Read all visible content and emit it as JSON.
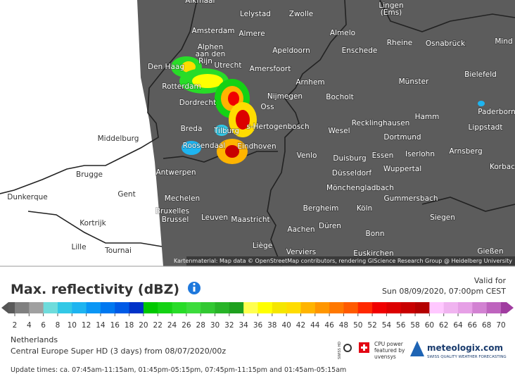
{
  "map": {
    "cities": [
      "Alkmaar",
      "Lelystad",
      "Zwolle",
      "Lingen",
      "(Ems)",
      "Amsterdam",
      "Almere",
      "Almelo",
      "Rheine",
      "Osnabrück",
      "Mind",
      "Alphen",
      "aan den",
      "Rijn",
      "Apeldoorn",
      "Enschede",
      "Den Haag",
      "Utrecht",
      "Amersfoort",
      "Bielefeld",
      "Arnhem",
      "Münster",
      "Rotterdam",
      "Nijmegen",
      "Bocholt",
      "Dordrecht",
      "Oss",
      "Paderborn",
      "Hamm",
      "s-Hertogenbosch",
      "Recklinghausen",
      "Lippstadt",
      "Breda",
      "Tilburg",
      "Wesel",
      "Dortmund",
      "Middelburg",
      "Roosendaal",
      "Eindhoven",
      "Arnsberg",
      "Venlo",
      "Duisburg",
      "Essen",
      "Iserlohn",
      "Antwerpen",
      "Düsseldorf",
      "Wuppertal",
      "Korbac",
      "Brugge",
      "Mönchengladbach",
      "Gent",
      "Dunkerque",
      "Gummersbach",
      "Mechelen",
      "Bergheim",
      "Köln",
      "Bruxelles",
      "Brussel",
      "Leuven",
      "Maastricht",
      "Siegen",
      "Kortrijk",
      "Düren",
      "Aachen",
      "Bonn",
      "Lille",
      "Liège",
      "Tournai",
      "Verviers",
      "Euskirchen",
      "Gießen"
    ],
    "attribution": "Kartenmaterial: Map data © OpenStreetMap contributors, rendering GIScience Research Group @ Heidelberg University"
  },
  "header": {
    "title": "Max. reflectivity (dBZ)",
    "valid_label": "Valid for",
    "valid_time": "Sun 08/09/2020, 07:00pm CEST"
  },
  "scale": {
    "ticks": [
      2,
      4,
      6,
      8,
      10,
      12,
      14,
      16,
      18,
      20,
      22,
      24,
      26,
      28,
      30,
      32,
      34,
      36,
      38,
      40,
      42,
      44,
      46,
      48,
      50,
      52,
      54,
      56,
      58,
      60,
      62,
      64,
      66,
      68,
      70
    ],
    "colors": [
      "#808080",
      "#a0a0a0",
      "#6edcdc",
      "#32c8e6",
      "#1eb4f0",
      "#0a96f5",
      "#0078f0",
      "#005ae6",
      "#0032c8",
      "#00c800",
      "#14d214",
      "#28dc28",
      "#3cdc3c",
      "#32c832",
      "#28b428",
      "#1ea01e",
      "#ffff50",
      "#ffff00",
      "#f5e600",
      "#ffdc00",
      "#ffb400",
      "#ff9600",
      "#ff7800",
      "#ff5a00",
      "#ff2800",
      "#f00000",
      "#dc0000",
      "#c80000",
      "#b40000",
      "#ffc8ff",
      "#f0b4f0",
      "#e6a0e6",
      "#d282d2",
      "#be64be"
    ]
  },
  "info": {
    "region": "Netherlands",
    "model": "Central Europe Super HD (3 days) from 08/07/2020/00z",
    "update_times": "Update times: ca. 07:45am-11:15am, 01:45pm-05:15pm, 07:45pm-11:15pm and 01:45am-05:15am"
  },
  "logo": {
    "swiss_hd": "SWISS HD",
    "cpu": "CPU power",
    "featured": "featured by",
    "partner": "uvensys",
    "brand": "meteologix.com",
    "tagline": "SWISS QUALITY WEATHER FORECASTING"
  }
}
